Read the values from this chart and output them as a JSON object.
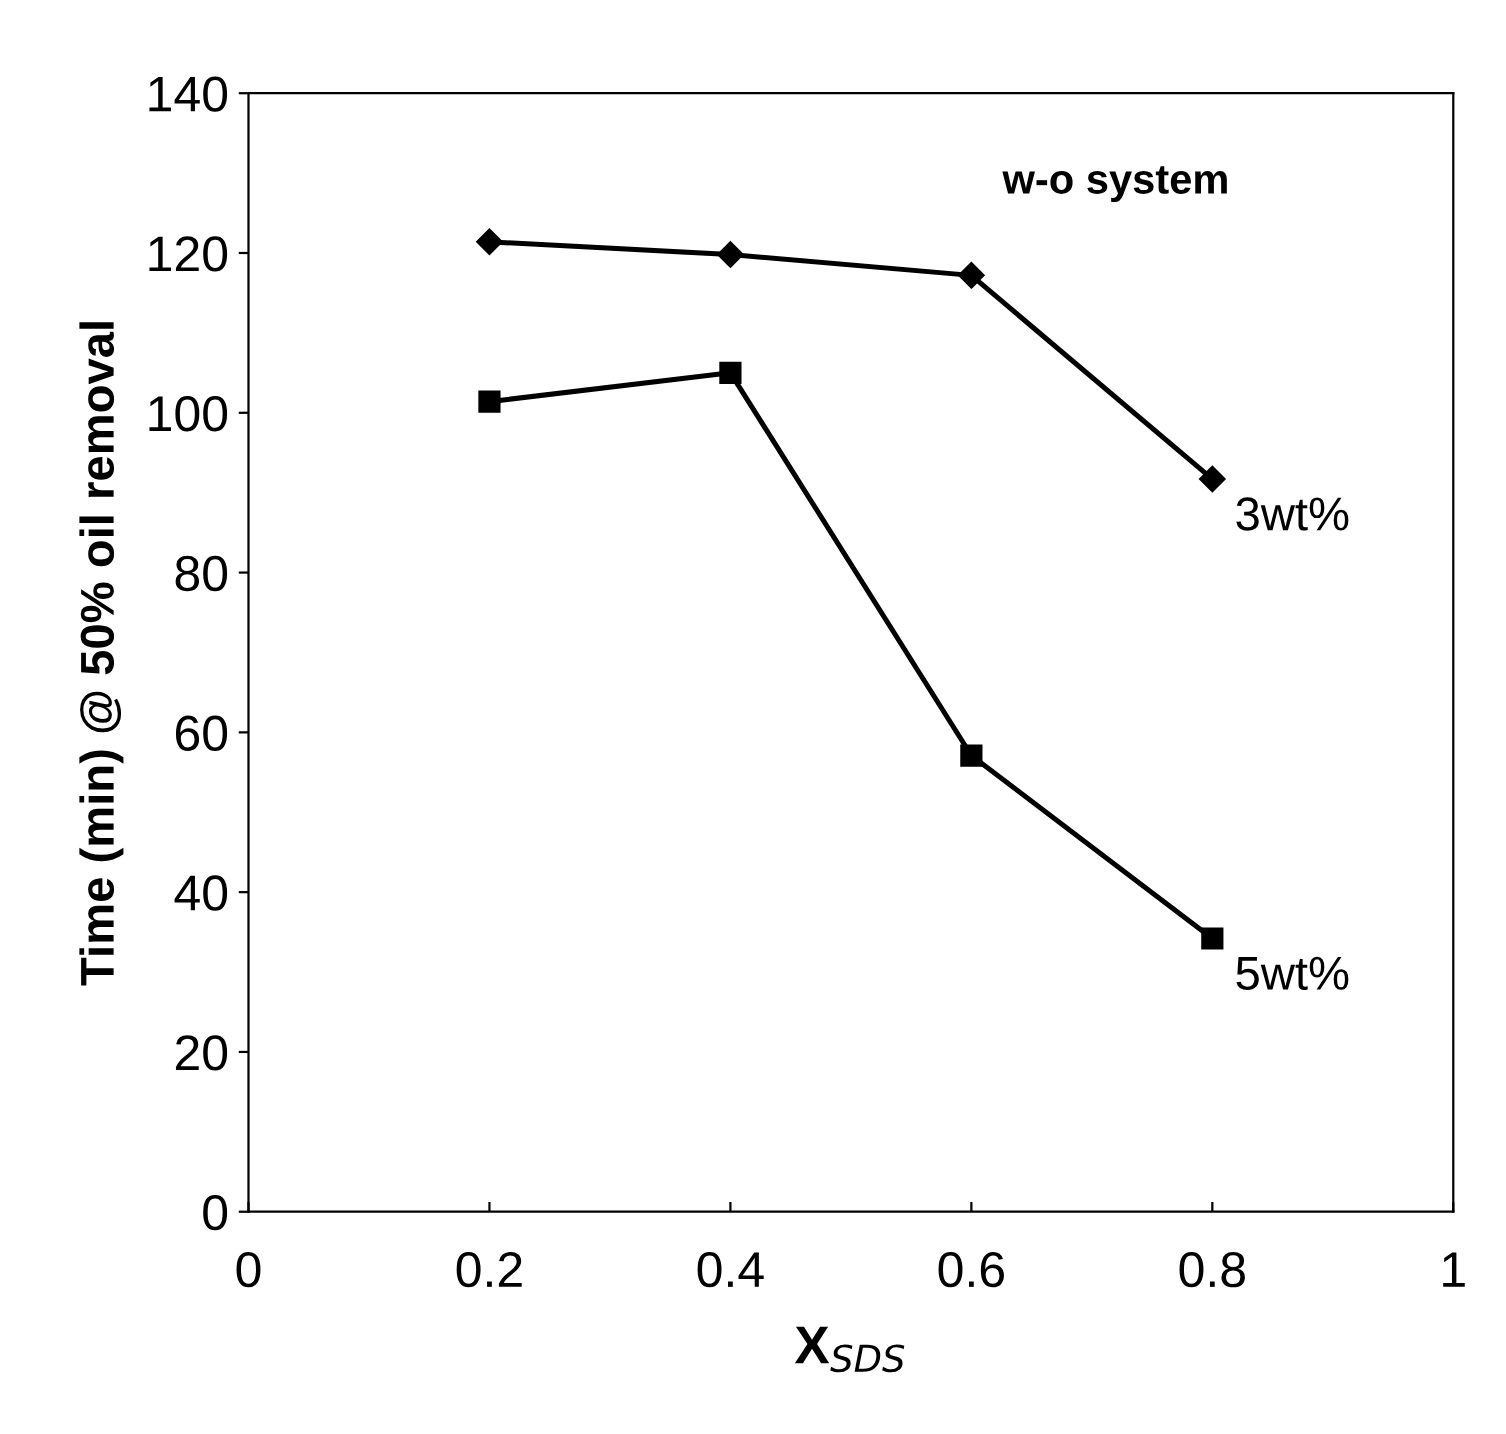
{
  "chart_data": {
    "type": "line",
    "xlabel": "X$_{SDS}$",
    "ylabel": "Time (min) @ 50% oil removal",
    "annotations": [
      "w-o system"
    ],
    "x": [
      0.2,
      0.4,
      0.6,
      0.8
    ],
    "series": [
      {
        "name": "3wt%",
        "color": "#000000",
        "marker": "diamond",
        "values": [
          121.4,
          119.8,
          117.2,
          91.7
        ]
      },
      {
        "name": "5wt%",
        "color": "#000000",
        "marker": "square",
        "values": [
          101.4,
          105.0,
          57.1,
          34.2
        ]
      }
    ],
    "xlim": [
      0,
      1
    ],
    "xticks": [
      0,
      0.2,
      0.4,
      0.6,
      0.8,
      1
    ],
    "ylim": [
      0,
      140
    ],
    "yticks": [
      0,
      20,
      40,
      60,
      80,
      100,
      120,
      140
    ],
    "grid": false,
    "legend": false,
    "line_style": "solid"
  }
}
